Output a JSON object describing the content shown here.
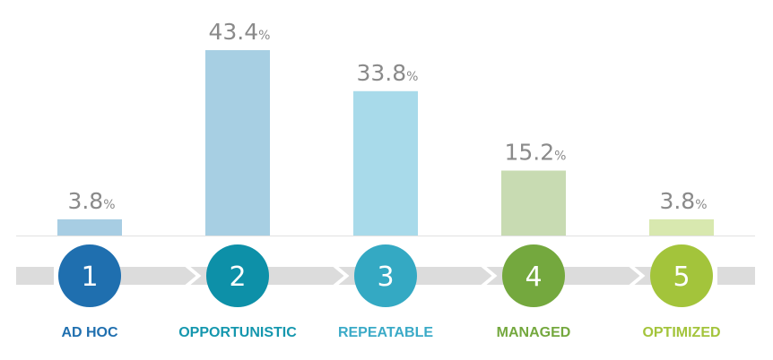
{
  "chart_data": {
    "type": "bar",
    "categories": [
      "AD HOC",
      "OPPORTUNISTIC",
      "REPEATABLE",
      "MANAGED",
      "OPTIMIZED"
    ],
    "stage_numbers": [
      "1",
      "2",
      "3",
      "4",
      "5"
    ],
    "values": [
      3.8,
      43.4,
      33.8,
      15.2,
      3.8
    ],
    "value_labels": [
      "3.8",
      "43.4",
      "33.8",
      "15.2",
      "3.8"
    ],
    "unit": "%",
    "ylim": [
      0,
      45
    ],
    "grid": false,
    "legend": "none",
    "bar_colors": [
      "#a7cde3",
      "#a7cfe3",
      "#a8daea",
      "#c8dbb2",
      "#d8e8af"
    ],
    "circle_colors": [
      "#1f6faf",
      "#0d90a8",
      "#34a9c3",
      "#74a83e",
      "#a3c43b"
    ],
    "label_colors": [
      "#1f6faf",
      "#1597ae",
      "#3aaac7",
      "#74a83e",
      "#a3c43b"
    ],
    "track_color": "#dcdcdc"
  }
}
